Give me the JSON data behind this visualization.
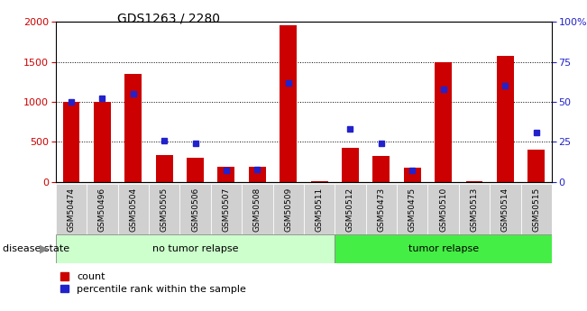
{
  "title": "GDS1263 / 2280",
  "samples": [
    "GSM50474",
    "GSM50496",
    "GSM50504",
    "GSM50505",
    "GSM50506",
    "GSM50507",
    "GSM50508",
    "GSM50509",
    "GSM50511",
    "GSM50512",
    "GSM50473",
    "GSM50475",
    "GSM50510",
    "GSM50513",
    "GSM50514",
    "GSM50515"
  ],
  "counts": [
    1000,
    1000,
    1350,
    340,
    300,
    190,
    190,
    1960,
    5,
    430,
    330,
    175,
    1500,
    10,
    1570,
    400
  ],
  "percentiles": [
    50,
    52,
    55,
    26,
    24,
    7,
    8,
    62,
    0,
    33,
    24,
    7,
    58,
    0,
    60,
    31
  ],
  "no_tumor_count": 9,
  "tumor_count": 7,
  "bar_color_red": "#cc0000",
  "bar_color_blue": "#2222cc",
  "no_tumor_color": "#ccffcc",
  "tumor_color": "#44ee44",
  "label_bg_color": "#d0d0d0",
  "ylim_left": [
    0,
    2000
  ],
  "ylim_right": [
    0,
    100
  ],
  "yticks_left": [
    0,
    500,
    1000,
    1500,
    2000
  ],
  "yticks_right": [
    0,
    25,
    50,
    75,
    100
  ],
  "ytick_labels_right": [
    "0",
    "25",
    "50",
    "75",
    "100%"
  ],
  "background_color": "#ffffff",
  "legend_count_label": "count",
  "legend_pct_label": "percentile rank within the sample",
  "disease_state_label": "disease state",
  "no_tumor_label": "no tumor relapse",
  "tumor_label": "tumor relapse"
}
